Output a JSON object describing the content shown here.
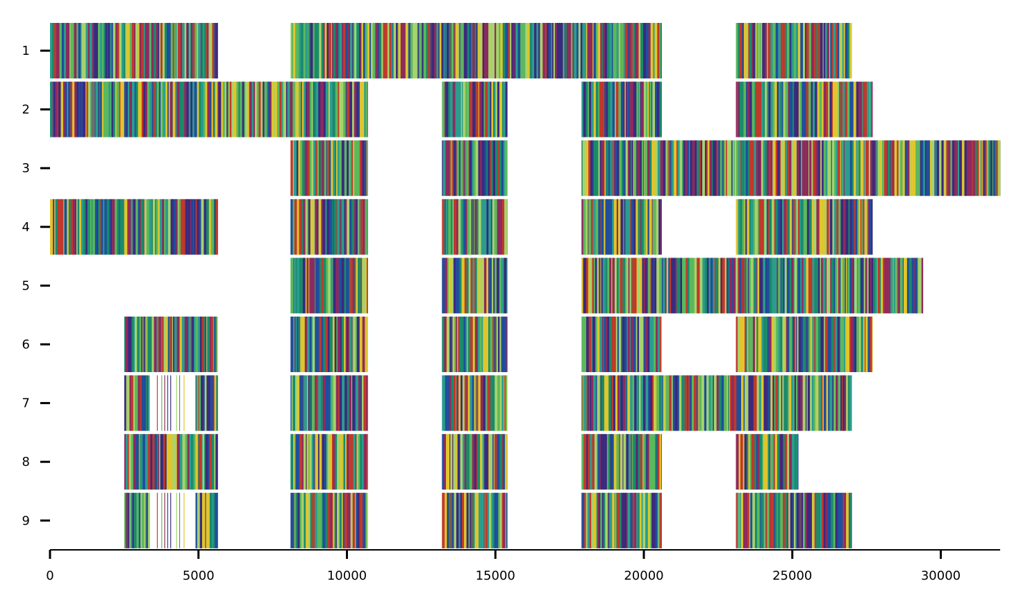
{
  "chart_data": {
    "type": "heatmap",
    "title": "",
    "xlabel": "",
    "ylabel": "",
    "xlim": [
      0,
      32000
    ],
    "x_ticks": [
      0,
      5000,
      10000,
      15000,
      20000,
      25000,
      30000
    ],
    "x_tick_labels": [
      "0",
      "5000",
      "10000",
      "15000",
      "20000",
      "25000",
      "30000"
    ],
    "rows": [
      "1",
      "2",
      "3",
      "4",
      "5",
      "6",
      "7",
      "8",
      "9"
    ],
    "grid": false,
    "legend": "none",
    "palette": [
      "#3b2a7e",
      "#1f4e9c",
      "#2a9d8f",
      "#5cb85c",
      "#a8d26b",
      "#e0c52c",
      "#c0392b",
      "#8e2a5e",
      "#1a8a6a"
    ],
    "segments": [
      {
        "row": "1",
        "start": 0,
        "end": 5650
      },
      {
        "row": "1",
        "start": 8100,
        "end": 20600
      },
      {
        "row": "1",
        "start": 23100,
        "end": 27000
      },
      {
        "row": "2",
        "start": 0,
        "end": 10700
      },
      {
        "row": "2",
        "start": 13200,
        "end": 15400
      },
      {
        "row": "2",
        "start": 17900,
        "end": 20600
      },
      {
        "row": "2",
        "start": 23100,
        "end": 27700
      },
      {
        "row": "3",
        "start": 8100,
        "end": 10700
      },
      {
        "row": "3",
        "start": 13200,
        "end": 15400
      },
      {
        "row": "3",
        "start": 17900,
        "end": 32000
      },
      {
        "row": "4",
        "start": 0,
        "end": 5650
      },
      {
        "row": "4",
        "start": 8100,
        "end": 10700
      },
      {
        "row": "4",
        "start": 13200,
        "end": 15400
      },
      {
        "row": "4",
        "start": 17900,
        "end": 20600
      },
      {
        "row": "4",
        "start": 23100,
        "end": 27700
      },
      {
        "row": "5",
        "start": 8100,
        "end": 10700
      },
      {
        "row": "5",
        "start": 13200,
        "end": 15400
      },
      {
        "row": "5",
        "start": 17900,
        "end": 29400
      },
      {
        "row": "6",
        "start": 2500,
        "end": 5650
      },
      {
        "row": "6",
        "start": 8100,
        "end": 10700
      },
      {
        "row": "6",
        "start": 13200,
        "end": 15400
      },
      {
        "row": "6",
        "start": 17900,
        "end": 20600
      },
      {
        "row": "6",
        "start": 23100,
        "end": 27700
      },
      {
        "row": "7",
        "start": 2500,
        "end": 3350
      },
      {
        "row": "7",
        "start": 4900,
        "end": 5650
      },
      {
        "row": "7",
        "start": 8100,
        "end": 10700
      },
      {
        "row": "7",
        "start": 13200,
        "end": 15400
      },
      {
        "row": "7",
        "start": 17900,
        "end": 27000
      },
      {
        "row": "8",
        "start": 2500,
        "end": 5650
      },
      {
        "row": "8",
        "start": 8100,
        "end": 10700
      },
      {
        "row": "8",
        "start": 13200,
        "end": 15400
      },
      {
        "row": "8",
        "start": 17900,
        "end": 20600
      },
      {
        "row": "8",
        "start": 23100,
        "end": 25200
      },
      {
        "row": "9",
        "start": 2500,
        "end": 3350
      },
      {
        "row": "9",
        "start": 4900,
        "end": 5650
      },
      {
        "row": "9",
        "start": 8100,
        "end": 10700
      },
      {
        "row": "9",
        "start": 13200,
        "end": 15400
      },
      {
        "row": "9",
        "start": 17900,
        "end": 20600
      },
      {
        "row": "9",
        "start": 23100,
        "end": 27000
      }
    ],
    "sparse_lines": [
      {
        "row": "7",
        "x": [
          3600,
          3750,
          3850,
          3950,
          4050,
          4250,
          4350,
          4500
        ],
        "colors": [
          "#c0392b",
          "#5cb85c",
          "#8e2a5e",
          "#1f4e9c",
          "#3b2a7e",
          "#a8d26b",
          "#2a9d8f",
          "#e0c52c"
        ]
      },
      {
        "row": "9",
        "x": [
          3600,
          3750,
          3850,
          3950,
          4050,
          4250,
          4350,
          4500
        ],
        "colors": [
          "#c0392b",
          "#5cb85c",
          "#8e2a5e",
          "#1f4e9c",
          "#3b2a7e",
          "#a8d26b",
          "#2a9d8f",
          "#e0c52c"
        ]
      }
    ]
  }
}
